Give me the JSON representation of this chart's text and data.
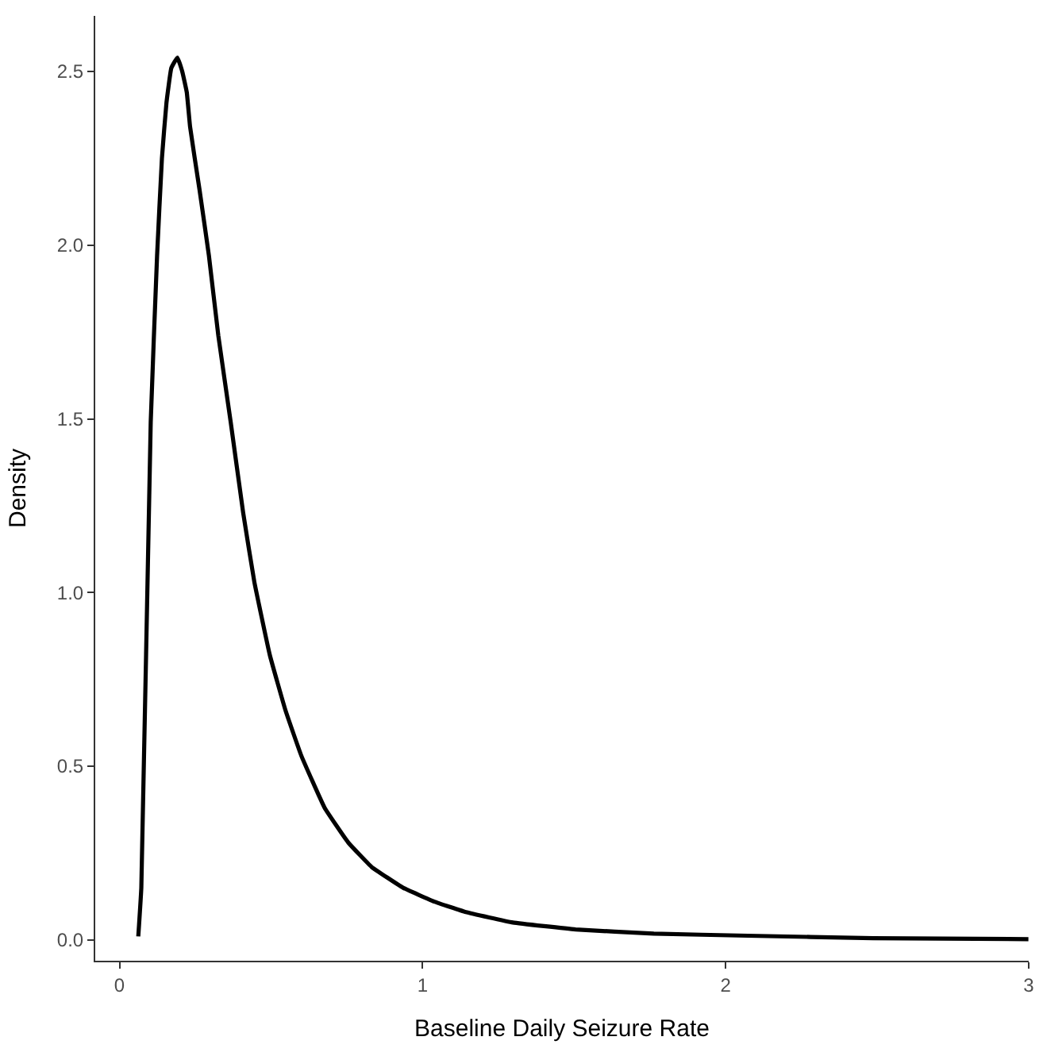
{
  "chart_data": {
    "type": "line",
    "xlabel": "Baseline Daily Seizure Rate",
    "ylabel": "Density",
    "x": [
      0.062,
      0.072,
      0.103,
      0.124,
      0.14,
      0.155,
      0.171,
      0.191,
      0.207,
      0.222,
      0.233,
      0.264,
      0.295,
      0.326,
      0.367,
      0.408,
      0.445,
      0.496,
      0.548,
      0.6,
      0.677,
      0.755,
      0.832,
      0.936,
      1.039,
      1.143,
      1.298,
      1.505,
      1.763,
      2.073,
      2.487,
      2.999
    ],
    "series": [
      {
        "color": "#000000",
        "values": [
          0.01,
          0.15,
          1.49,
          1.97,
          2.25,
          2.41,
          2.51,
          2.54,
          2.5,
          2.44,
          2.34,
          2.16,
          1.97,
          1.74,
          1.49,
          1.23,
          1.03,
          0.82,
          0.66,
          0.53,
          0.38,
          0.28,
          0.21,
          0.15,
          0.11,
          0.08,
          0.05,
          0.03,
          0.018,
          0.012,
          0.005,
          0.002
        ]
      }
    ],
    "xlim": [
      -0.08,
      3.0
    ],
    "ylim": [
      -0.06,
      2.66
    ],
    "xticks": [
      0,
      1,
      2,
      3
    ],
    "yticks": [
      {
        "value": 0,
        "label": "0.0"
      },
      {
        "value": 0.5,
        "label": "0.5"
      },
      {
        "value": 1,
        "label": "1.0"
      },
      {
        "value": 1.5,
        "label": "1.5"
      },
      {
        "value": 2,
        "label": "2.0"
      },
      {
        "value": 2.5,
        "label": "2.5"
      }
    ],
    "marker": "none",
    "line_style": "solid"
  }
}
